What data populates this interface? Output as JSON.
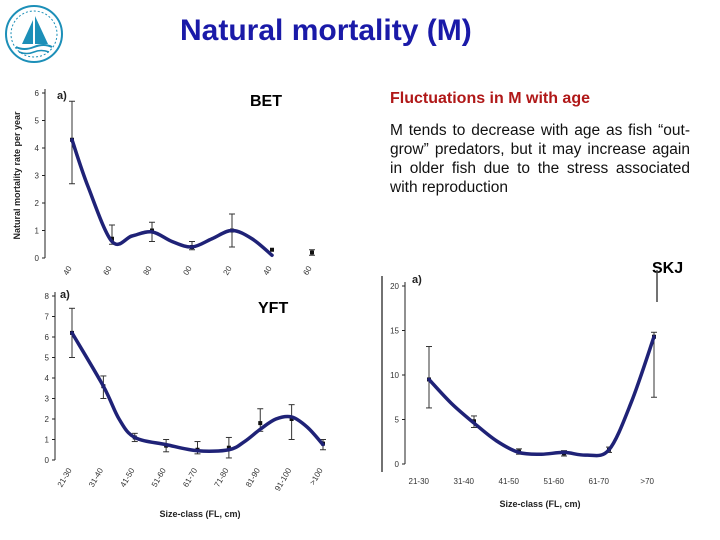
{
  "slide": {
    "title": "Natural mortality (M)",
    "side_heading": "Fluctuations in M with age",
    "side_text": "M tends to decrease with age as fish “out-grow” predators, but it may increase again in older fish due to the stress associated with reproduction",
    "logo_icon": "sailboat-logo-icon",
    "colors": {
      "title": "#1a1aa8",
      "heading": "#b01818",
      "curve": "#1f2277"
    }
  },
  "labels": {
    "bet": "BET",
    "yft": "YFT",
    "skj": "SKJ"
  },
  "chart_data": [
    {
      "type": "line",
      "species": "BET",
      "sublabel": "a)",
      "ylabel": "Natural mortality rate per year",
      "xlabel": "",
      "ylim": [
        0,
        6
      ],
      "yticks": [
        0,
        1,
        2,
        3,
        4,
        5,
        6
      ],
      "categories": [
        "40",
        "60",
        "80",
        "100",
        "120",
        "140",
        "160"
      ],
      "category_labels": [
        "40",
        "60",
        "80",
        "00",
        "20",
        "40",
        "60"
      ],
      "values": [
        4.3,
        0.7,
        1.0,
        0.4,
        1.0,
        0.3,
        0.2
      ],
      "errors": [
        [
          2.7,
          5.7
        ],
        [
          0.5,
          1.2
        ],
        [
          0.6,
          1.3
        ],
        [
          0.3,
          0.6
        ],
        [
          0.4,
          1.6
        ],
        null,
        [
          0.1,
          0.3
        ]
      ],
      "smooth_curve_x": [
        0,
        0.4,
        1,
        1.5,
        2,
        2.5,
        3,
        3.5,
        4,
        4.5,
        5
      ],
      "smooth_curve_y": [
        4.3,
        2.6,
        0.6,
        0.8,
        0.95,
        0.6,
        0.4,
        0.7,
        1.0,
        0.7,
        0.1
      ],
      "grid": false
    },
    {
      "type": "line",
      "species": "YFT",
      "sublabel": "a)",
      "xlabel": "Size-class (FL, cm)",
      "ylabel": "",
      "ylim": [
        0,
        8
      ],
      "yticks": [
        0,
        1,
        2,
        3,
        4,
        5,
        6,
        7,
        8
      ],
      "categories": [
        "21-30",
        "31-40",
        "41-50",
        "51-60",
        "61-70",
        "71-80",
        "81-90",
        "91-100",
        ">100"
      ],
      "values": [
        6.2,
        3.6,
        1.1,
        0.7,
        0.5,
        0.6,
        1.8,
        2.0,
        0.8
      ],
      "errors": [
        [
          5.0,
          7.4
        ],
        [
          3.0,
          4.1
        ],
        [
          0.9,
          1.3
        ],
        [
          0.4,
          1.0
        ],
        [
          0.3,
          0.9
        ],
        [
          0.1,
          1.1
        ],
        [
          1.4,
          2.5
        ],
        [
          1.0,
          2.7
        ],
        [
          0.5,
          1.0
        ]
      ],
      "smooth_curve_x": [
        0,
        1,
        1.5,
        2,
        3,
        4,
        5,
        5.5,
        6,
        6.5,
        7,
        7.5,
        8
      ],
      "smooth_curve_y": [
        6.2,
        3.6,
        2.0,
        1.1,
        0.75,
        0.45,
        0.5,
        0.9,
        1.5,
        2.0,
        2.1,
        1.6,
        0.75
      ],
      "grid": false
    },
    {
      "type": "line",
      "species": "SKJ",
      "sublabel": "a)",
      "xlabel": "Size-class (FL, cm)",
      "ylabel": "",
      "ylim": [
        0,
        20
      ],
      "yticks": [
        0,
        5,
        10,
        15,
        20
      ],
      "categories": [
        "21-30",
        "31-40",
        "41-50",
        "51-60",
        "61-70",
        ">70"
      ],
      "values": [
        9.5,
        4.8,
        1.4,
        1.2,
        1.6,
        14.3
      ],
      "errors": [
        [
          6.3,
          13.2
        ],
        [
          4.1,
          5.4
        ],
        [
          1.1,
          1.7
        ],
        [
          0.9,
          1.5
        ],
        [
          1.3,
          1.9
        ],
        [
          7.5,
          14.8
        ]
      ],
      "smooth_curve_x": [
        0,
        0.5,
        1,
        1.5,
        2,
        2.5,
        3,
        3.5,
        4,
        4.5,
        5
      ],
      "smooth_curve_y": [
        9.5,
        6.8,
        4.6,
        2.6,
        1.3,
        1.1,
        1.3,
        1.0,
        1.6,
        7.0,
        14.3
      ],
      "grid": false
    }
  ]
}
